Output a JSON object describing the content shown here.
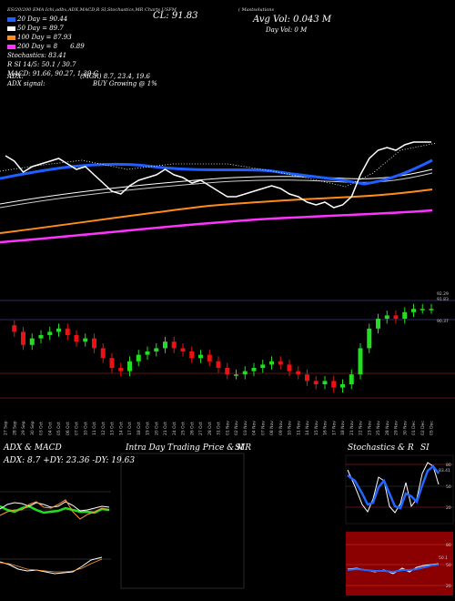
{
  "header": {
    "line1": "ES/20/200 EMA Ichi,adbx,ADX,MACD,R SI,Stochastics,MR Charts USFM",
    "tail": "( Mastsolutions",
    "cl_label": "CL: 91.83",
    "avg_vol": "Avg Vol: 0.043 M",
    "day_vol": "Day Vol: 0 M",
    "legend": [
      {
        "label": "20 Day = 90.44",
        "color": "#1f5fff"
      },
      {
        "label": "50 Day = 89.7",
        "color": "#ffffff"
      },
      {
        "label": "100 Day = 87.93",
        "color": "#ff8c1a"
      },
      {
        "label": "200 Day = 8",
        "color": "#ff33ff",
        "extra": "6.89"
      }
    ],
    "stoch": "Stochastics: 83.41",
    "si": "R  SI 14/5: 50.1 / 30.7",
    "macd": "MACD: 91.66, 90.27, 1.39 C",
    "adx": "ADX:",
    "mgr": "(MGR) 8.7, 23.4, 19.6",
    "adx_signal": "ADX  signal:",
    "buy": "BUY Growing @ 1%"
  },
  "price_labels": {
    "top": "92.29",
    "top2": "91.83",
    "mid": "90.37"
  },
  "dates": [
    "27 Sep",
    "28 Sep",
    "29 Sep",
    "30 Sep",
    "03 Oct",
    "04 Oct",
    "05 Oct",
    "06 Oct",
    "07 Oct",
    "10 Oct",
    "11 Oct",
    "12 Oct",
    "13 Oct",
    "14 Oct",
    "17 Oct",
    "18 Oct",
    "19 Oct",
    "20 Oct",
    "21 Oct",
    "24 Oct",
    "25 Oct",
    "26 Oct",
    "27 Oct",
    "28 Oct",
    "31 Oct",
    "01 Nov",
    "02 Nov",
    "03 Nov",
    "04 Nov",
    "07 Nov",
    "08 Nov",
    "09 Nov",
    "10 Nov",
    "11 Nov",
    "14 Nov",
    "15 Nov",
    "16 Nov",
    "17 Nov",
    "18 Nov",
    "21 Nov",
    "22 Nov",
    "23 Nov",
    "25 Nov",
    "28 Nov",
    "29 Nov",
    "30 Nov",
    "01 Dec",
    "02 Dec",
    "05 Dec"
  ],
  "panels": {
    "adx_title": "ADX  & MACD",
    "adx_values": "ADX: 8.7 +DY: 23.36  -DY: 19.63",
    "intra_title": "Intra  Day Trading Price  & MR",
    "intra_suffix": "SI",
    "stoch_title": "Stochastics & R",
    "stoch_suffix": "SI",
    "stoch_ticks": [
      "80",
      "50",
      "20"
    ],
    "rsi_ticks": [
      "80",
      "50",
      "20"
    ],
    "stoch_val": "83.41",
    "rsi_val": "50.1"
  },
  "chart_data": {
    "type": "line",
    "series": [
      {
        "name": "Price",
        "values": [
          91.3,
          91.1,
          90.7,
          90.9,
          91.0,
          91.1,
          91.2,
          91.0,
          90.8,
          90.9,
          90.6,
          90.3,
          90.0,
          89.9,
          90.2,
          90.4,
          90.5,
          90.6,
          90.8,
          90.6,
          90.5,
          90.3,
          90.4,
          90.2,
          90.0,
          89.8,
          89.8,
          89.9,
          90.0,
          90.1,
          90.2,
          90.1,
          89.9,
          89.8,
          89.6,
          89.5,
          89.6,
          89.4,
          89.5,
          89.8,
          90.6,
          91.2,
          91.5,
          91.6,
          91.5,
          91.7,
          91.8,
          91.8,
          91.8
        ]
      },
      {
        "name": "20 Day",
        "values": [
          89.9,
          90.0,
          90.05,
          90.1,
          90.12,
          90.15,
          90.18,
          90.2,
          90.2,
          90.2,
          90.18,
          90.15,
          90.12,
          90.1,
          90.08,
          90.08,
          90.1,
          90.12,
          90.14,
          90.15,
          90.16,
          90.16,
          90.15,
          90.12,
          90.1,
          90.08,
          90.05,
          90.02,
          90.0,
          90.0,
          90.0,
          89.98,
          89.96,
          89.94,
          89.92,
          89.9,
          89.88,
          89.86,
          89.84,
          89.84,
          89.86,
          89.9,
          89.95,
          90.0,
          90.1,
          90.18,
          90.26,
          90.35,
          90.44
        ]
      }
    ]
  }
}
